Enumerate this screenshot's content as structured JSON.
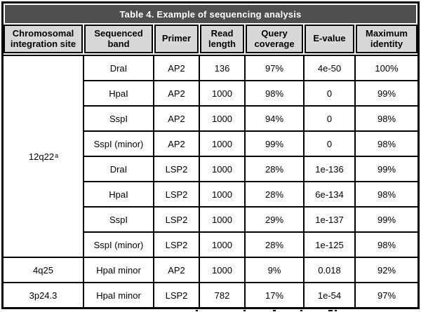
{
  "table": {
    "title": "Table 4. Example of sequencing analysis",
    "columns": [
      "Chromosomal integration site",
      "Sequenced band",
      "Primer",
      "Read length",
      "Query coverage",
      "E-value",
      "Maximum identity"
    ],
    "groups": [
      {
        "site": "12q22",
        "site_superscript": "a",
        "rows": [
          [
            "DraI",
            "AP2",
            "136",
            "97%",
            "4e-50",
            "100%"
          ],
          [
            "HpaI",
            "AP2",
            "1000",
            "98%",
            "0",
            "99%"
          ],
          [
            "SspI",
            "AP2",
            "1000",
            "94%",
            "0",
            "98%"
          ],
          [
            "SspI (minor)",
            "AP2",
            "1000",
            "99%",
            "0",
            "98%"
          ],
          [
            "DraI",
            "LSP2",
            "1000",
            "28%",
            "1e-136",
            "99%"
          ],
          [
            "HpaI",
            "LSP2",
            "1000",
            "28%",
            "6e-134",
            "98%"
          ],
          [
            "SspI",
            "LSP2",
            "1000",
            "29%",
            "1e-137",
            "99%"
          ],
          [
            "SspI (minor)",
            "LSP2",
            "1000",
            "28%",
            "1e-125",
            "98%"
          ]
        ]
      },
      {
        "site": "4q25",
        "site_superscript": "",
        "rows": [
          [
            "HpaI minor",
            "AP2",
            "1000",
            "9%",
            "0.018",
            "92%"
          ]
        ]
      },
      {
        "site": "3p24.3",
        "site_superscript": "",
        "rows": [
          [
            "HpaI minor",
            "LSP2",
            "782",
            "17%",
            "1e-54",
            "97%"
          ]
        ]
      }
    ],
    "colors": {
      "title_bar_bg": "#4f4f4f",
      "title_text": "#ffffff",
      "header_cell_bg": "#d8d8d8",
      "border": "#000000",
      "body_bg": "#ffffff"
    }
  }
}
